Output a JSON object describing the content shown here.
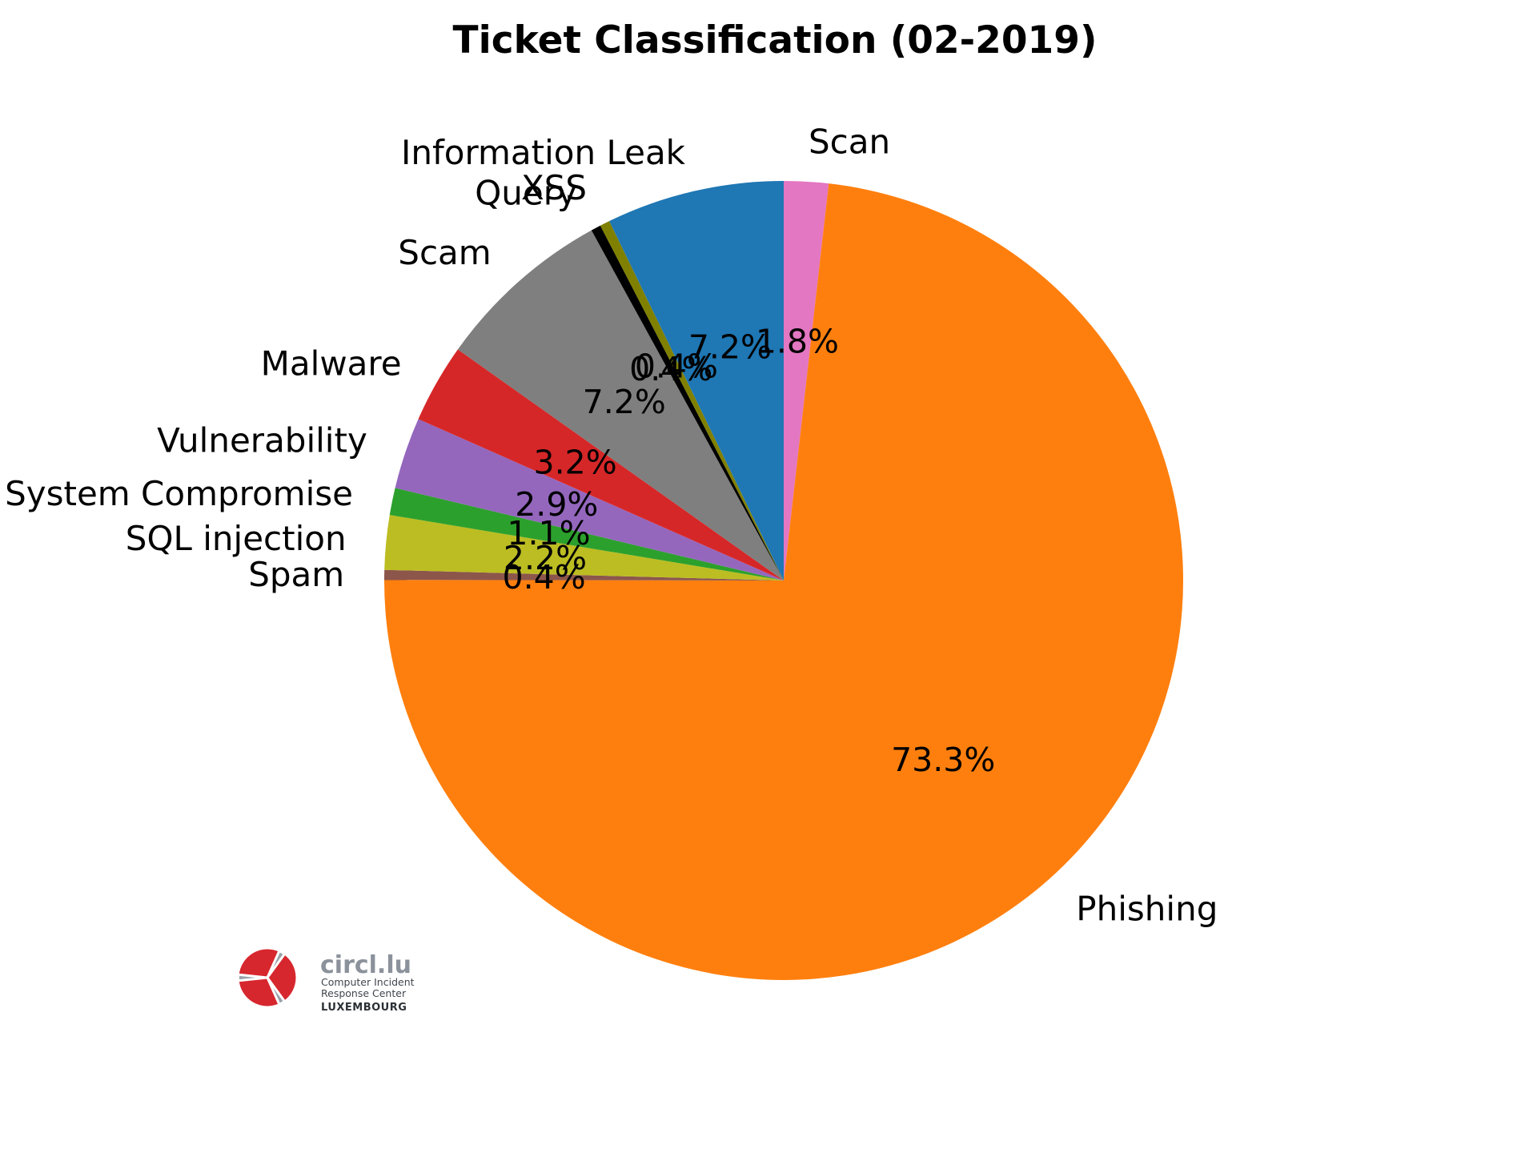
{
  "title": "Ticket Classification (02-2019)",
  "chart_data": {
    "type": "pie",
    "title": "Ticket Classification (02-2019)",
    "start_angle_deg": 90,
    "direction": "clockwise",
    "labeldistance": 1.1,
    "pctdistance": 0.6,
    "legend": "none",
    "slices": [
      {
        "label": "Scan",
        "pct": 1.8,
        "color": "#e377c2"
      },
      {
        "label": "Phishing",
        "pct": 73.3,
        "color": "#ff7f0e"
      },
      {
        "label": "Spam",
        "pct": 0.4,
        "color": "#8c564b"
      },
      {
        "label": "SQL injection",
        "pct": 2.2,
        "color": "#bcbd22"
      },
      {
        "label": "System Compromise",
        "pct": 1.1,
        "color": "#2ca02c"
      },
      {
        "label": "Vulnerability",
        "pct": 2.9,
        "color": "#9467bd"
      },
      {
        "label": "Malware",
        "pct": 3.2,
        "color": "#d62728"
      },
      {
        "label": "Scam",
        "pct": 7.2,
        "color": "#7f7f7f"
      },
      {
        "label": "Query",
        "pct": 0.4,
        "color": "#000000"
      },
      {
        "label": "XSS",
        "pct": 0.4,
        "color": "#808000"
      },
      {
        "label": "Information Leak",
        "pct": 7.2,
        "color": "#1f77b4"
      }
    ]
  },
  "logo": {
    "brand": "circl.lu",
    "line1": "Computer Incident",
    "line2": "Response Center",
    "line3": "LUXEMBOURG",
    "red": "#d7272e",
    "gray": "#9aa2a9"
  }
}
